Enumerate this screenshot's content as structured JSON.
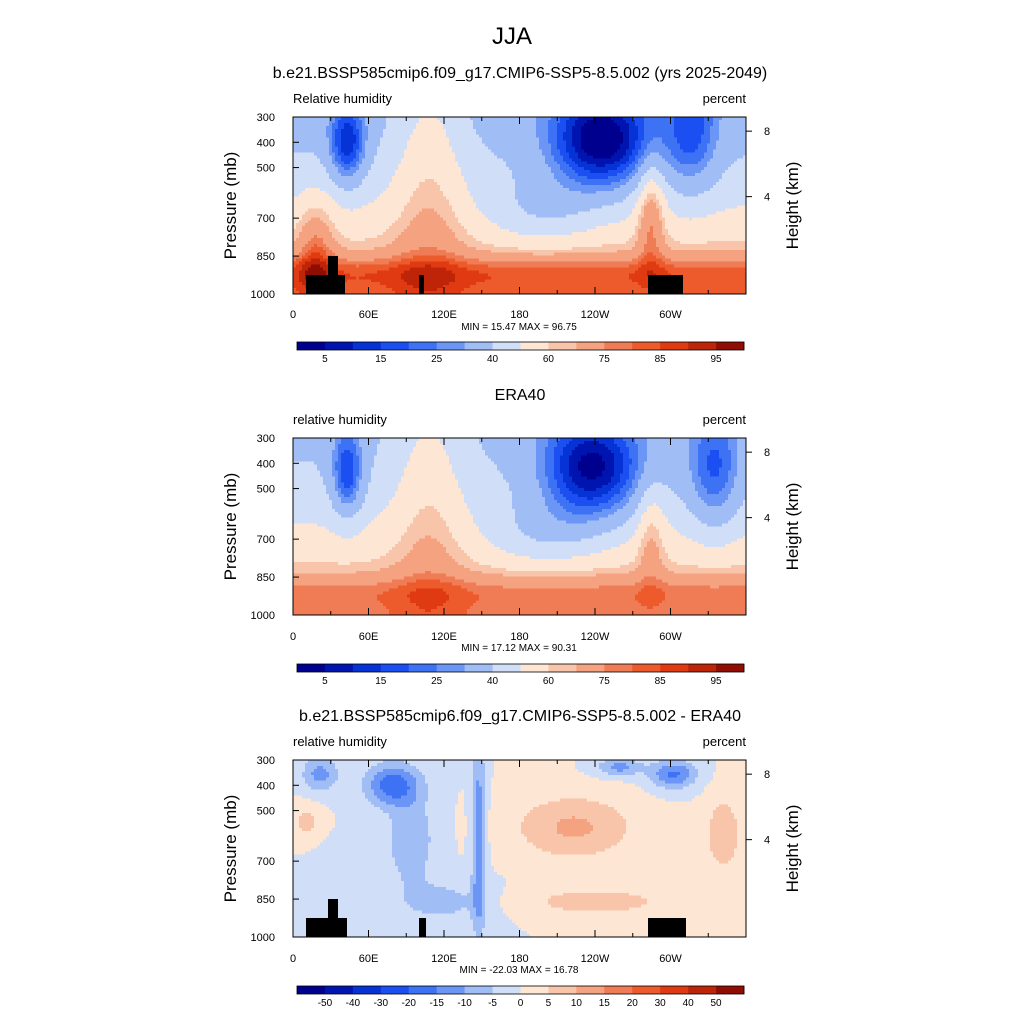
{
  "figure": {
    "title": "JJA"
  },
  "chart_data": [
    {
      "type": "heatmap",
      "title": "b.e21.BSSP585cmip6.f09_g17.CMIP6-SSP5-8.5.002 (yrs 2025-2049)",
      "left_label": "Relative humidity",
      "right_label": "percent",
      "ylabel": "Pressure (mb)",
      "ylabel_right": "Height (km)",
      "x_ticks": [
        "0",
        "60E",
        "120E",
        "180",
        "120W",
        "60W"
      ],
      "y_ticks": [
        "300",
        "400",
        "500",
        "700",
        "850",
        "1000"
      ],
      "y_ticks_right": [
        "8",
        "4"
      ],
      "stats": "MIN =  15.47   MAX =  96.75",
      "colorbar_labels": [
        "5",
        "15",
        "25",
        "40",
        "60",
        "75",
        "85",
        "95"
      ],
      "colorbar_levels": [
        5,
        10,
        15,
        20,
        25,
        30,
        40,
        50,
        60,
        65,
        75,
        80,
        85,
        90,
        95
      ],
      "value_range": [
        15.47,
        96.75
      ]
    },
    {
      "type": "heatmap",
      "title": "ERA40",
      "left_label": "relative humidity",
      "right_label": "percent",
      "ylabel": "Pressure (mb)",
      "ylabel_right": "Height (km)",
      "x_ticks": [
        "0",
        "60E",
        "120E",
        "180",
        "120W",
        "60W"
      ],
      "y_ticks": [
        "300",
        "400",
        "500",
        "700",
        "850",
        "1000"
      ],
      "y_ticks_right": [
        "8",
        "4"
      ],
      "stats": "MIN =  17.12   MAX =  90.31",
      "colorbar_labels": [
        "5",
        "15",
        "25",
        "40",
        "60",
        "75",
        "85",
        "95"
      ],
      "colorbar_levels": [
        5,
        10,
        15,
        20,
        25,
        30,
        40,
        50,
        60,
        65,
        75,
        80,
        85,
        90,
        95
      ],
      "value_range": [
        17.12,
        90.31
      ]
    },
    {
      "type": "heatmap",
      "title": "b.e21.BSSP585cmip6.f09_g17.CMIP6-SSP5-8.5.002 - ERA40",
      "left_label": "relative humidity",
      "right_label": "percent",
      "ylabel": "Pressure (mb)",
      "ylabel_right": "Height (km)",
      "x_ticks": [
        "0",
        "60E",
        "120E",
        "180",
        "120W",
        "60W"
      ],
      "y_ticks": [
        "300",
        "400",
        "500",
        "700",
        "850",
        "1000"
      ],
      "y_ticks_right": [
        "8",
        "4"
      ],
      "stats": "MIN = -22.03   MAX =  16.78",
      "colorbar_labels": [
        "-50",
        "-40",
        "-30",
        "-20",
        "-15",
        "-10",
        "-5",
        "0",
        "5",
        "10",
        "15",
        "20",
        "30",
        "40",
        "50"
      ],
      "colorbar_levels": [
        -50,
        -40,
        -30,
        -20,
        -15,
        -10,
        -5,
        0,
        5,
        10,
        15,
        20,
        30,
        40,
        50
      ],
      "value_range": [
        -22.03,
        16.78
      ]
    }
  ],
  "colors": {
    "colormap": [
      "#00008f",
      "#0015b0",
      "#0533d6",
      "#1c4ff2",
      "#3e72f5",
      "#6b96f5",
      "#a0bdf6",
      "#d0def8",
      "#fde6d3",
      "#f8c5aa",
      "#f4a27f",
      "#f07c55",
      "#ed5a2c",
      "#df3a12",
      "#be2408",
      "#8f0d02"
    ],
    "topography": "#000000"
  }
}
